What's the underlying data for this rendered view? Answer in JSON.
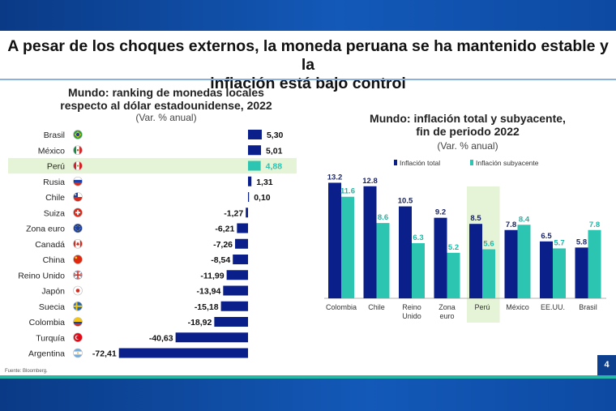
{
  "slide": {
    "title_line1": "A pesar de los choques externos, la moneda peruana se ha mantenido estable y la",
    "title_line2": "inflación está bajo control",
    "source": "Fuente: Bloomberg.",
    "page_number": "4"
  },
  "chart_data": [
    {
      "type": "bar",
      "orientation": "horizontal",
      "title": "Mundo: ranking de monedas locales respecto al dólar estadounidense, 2022",
      "title_line1": "Mundo: ranking de monedas locales",
      "title_line2": "respecto al dólar estadounidense, 2022",
      "subtitle": "(Var. % anual)",
      "categories": [
        "Brasil",
        "México",
        "Perú",
        "Rusia",
        "Chile",
        "Suiza",
        "Zona euro",
        "Canadá",
        "China",
        "Reino Unido",
        "Japón",
        "Suecia",
        "Colombia",
        "Turquía",
        "Argentina"
      ],
      "values": [
        5.3,
        5.01,
        4.88,
        1.31,
        0.1,
        -1.27,
        -6.21,
        -7.26,
        -8.54,
        -11.99,
        -13.94,
        -15.18,
        -18.92,
        -40.63,
        -72.41
      ],
      "value_labels": [
        "5,30",
        "5,01",
        "4,88",
        "1,31",
        "0,10",
        "-1,27",
        "-6,21",
        "-7,26",
        "-8,54",
        "-11,99",
        "-13,94",
        "-15,18",
        "-18,92",
        "-40,63",
        "-72,41"
      ],
      "flags": [
        "flag-brazil-icon",
        "flag-mexico-icon",
        "flag-peru-icon",
        "flag-russia-icon",
        "flag-chile-icon",
        "flag-switzerland-icon",
        "flag-eu-icon",
        "flag-canada-icon",
        "flag-china-icon",
        "flag-uk-icon",
        "flag-japan-icon",
        "flag-sweden-icon",
        "flag-colombia-icon",
        "flag-turkey-icon",
        "flag-argentina-icon"
      ],
      "highlight": "Perú",
      "colors": {
        "bar": "#0b1f8a",
        "highlight_bar": "#2cc5b2",
        "highlight_label": "#2cc5b2",
        "highlight_row": "#e5f3d6"
      },
      "xlim": [
        -72.41,
        5.3
      ]
    },
    {
      "type": "bar",
      "title": "Mundo: inflación total y subyacente, fin de periodo 2022",
      "title_line1": "Mundo: inflación total y subyacente,",
      "title_line2": "fin de periodo 2022",
      "subtitle": "(Var. % anual)",
      "categories": [
        "Colombia",
        "Chile",
        "Reino Unido",
        "Zona euro",
        "Perú",
        "México",
        "EE.UU.",
        "Brasil"
      ],
      "category_lines": [
        [
          "Colombia"
        ],
        [
          "Chile"
        ],
        [
          "Reino",
          "Unido"
        ],
        [
          "Zona",
          "euro"
        ],
        [
          "Perú"
        ],
        [
          "México"
        ],
        [
          "EE.UU."
        ],
        [
          "Brasil"
        ]
      ],
      "series": [
        {
          "name": "Inflación total",
          "values": [
            13.2,
            12.8,
            10.5,
            9.2,
            8.5,
            7.8,
            6.5,
            5.8
          ],
          "labels": [
            "13.2",
            "12.8",
            "10.5",
            "9.2",
            "8.5",
            "7.8",
            "6.5",
            "5.8"
          ],
          "color": "#0b1f8a"
        },
        {
          "name": "Inflación subyacente",
          "values": [
            11.6,
            8.6,
            6.3,
            5.2,
            5.6,
            8.4,
            5.7,
            7.8
          ],
          "labels": [
            "11.6",
            "8.6",
            "6.3",
            "5.2",
            "5.6",
            "8.4",
            "5.7",
            "7.8"
          ],
          "color": "#2cc5b2"
        }
      ],
      "highlight": "Perú",
      "colors": {
        "highlight_bg": "#e5f3d6",
        "label_total": "#1b2560",
        "label_sub": "#23b3a2"
      },
      "legend_placement": "top",
      "ylim": [
        0,
        15
      ]
    }
  ]
}
